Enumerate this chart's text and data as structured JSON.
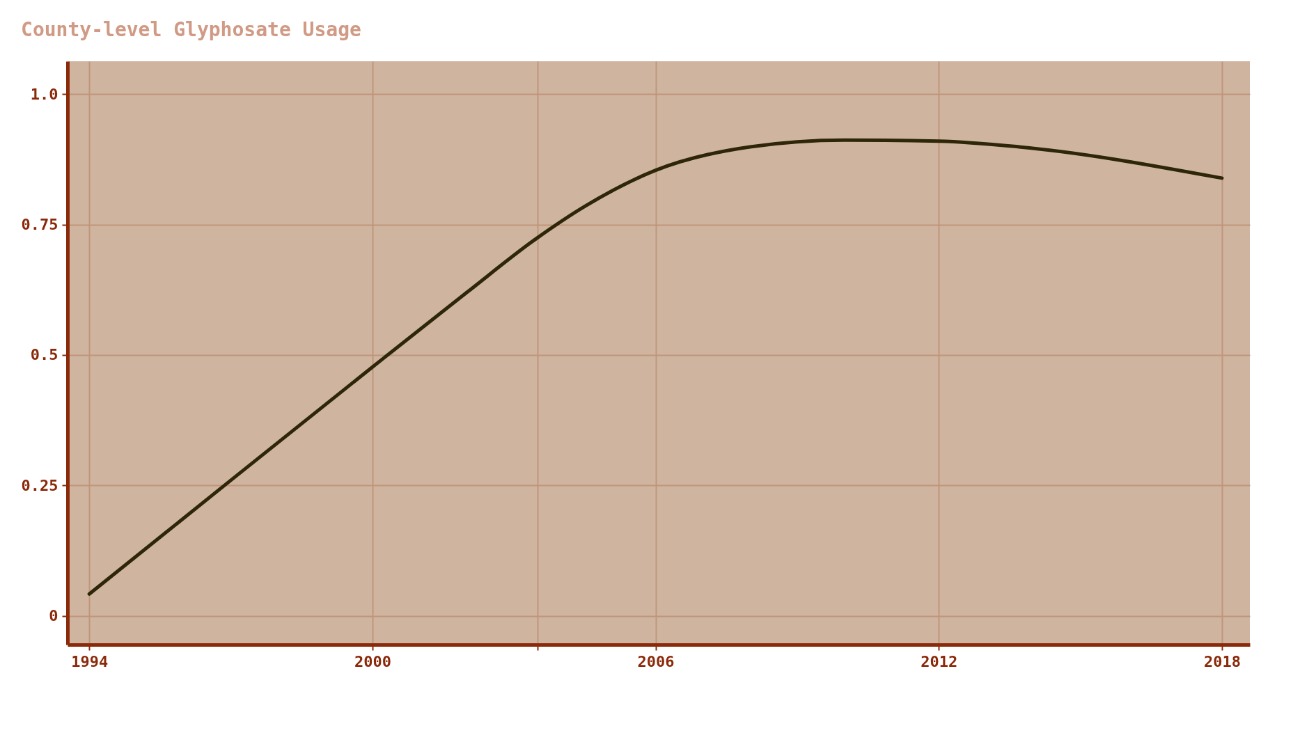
{
  "chart_data": {
    "type": "line",
    "title": "County-level Glyphosate Usage",
    "x": [
      1994,
      1997,
      2000,
      2002,
      2003.5,
      2004.5,
      2006,
      2008,
      2010,
      2012,
      2013.7,
      2018
    ],
    "series": [
      {
        "color": "#2e2608",
        "values": [
          0.042,
          0.26,
          0.477,
          0.62,
          0.725,
          0.785,
          0.854,
          0.899,
          0.912,
          0.91,
          0.899,
          0.839
        ]
      }
    ],
    "xlim": [
      1993.54,
      2018.59
    ],
    "ylim": [
      -0.055,
      1.063
    ],
    "xticks": [
      1994,
      2000,
      {
        "value": 2003.5,
        "label": null
      },
      2006,
      2012,
      2018
    ],
    "yticks": [
      0,
      0.25,
      0.5,
      0.75,
      {
        "value": 1,
        "label": "1.0"
      }
    ],
    "grid": true,
    "marker": "none",
    "line_style": "solid"
  }
}
